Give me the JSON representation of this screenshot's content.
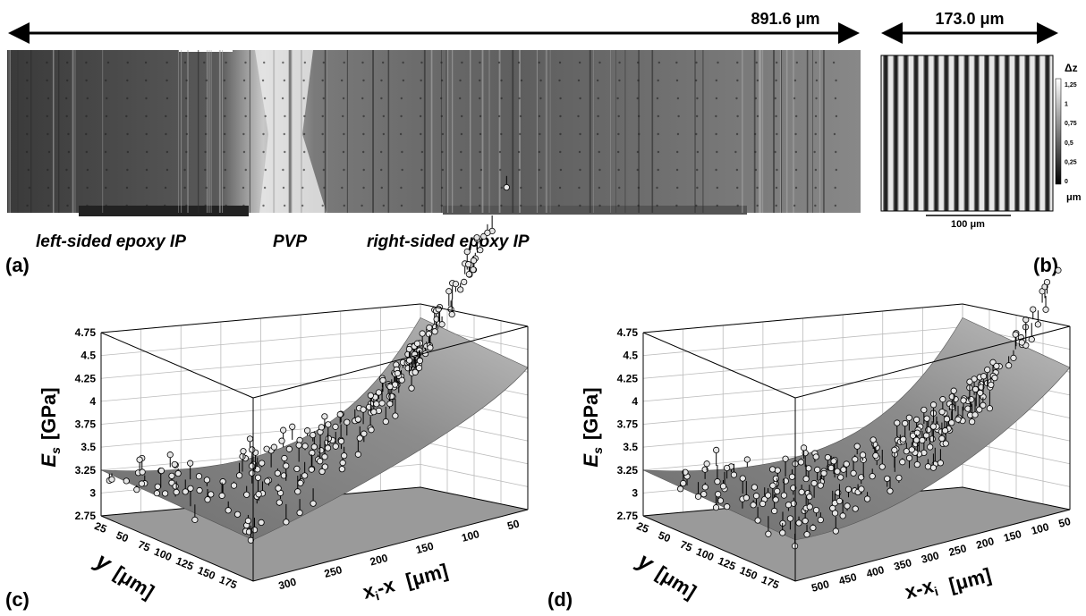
{
  "panel_a": {
    "scale_label": "891.6 μm",
    "labels": [
      "left-sided epoxy IP",
      "PVP",
      "right-sided epoxy IP"
    ],
    "tag": "(a)"
  },
  "panel_b": {
    "scale_label": "173.0 μm",
    "colorbar_title": "Δz",
    "colorbar_ticks": [
      "1,25",
      "1",
      "0,75",
      "0,5",
      "0,25",
      "0"
    ],
    "colorbar_unit": "μm",
    "scalebar_label": "100 μm",
    "tag": "(b)"
  },
  "panel_c": {
    "z_ticks": [
      "4.75",
      "4.5",
      "4.25",
      "4",
      "3.75",
      "3.5",
      "3.25",
      "3",
      "2.75"
    ],
    "z_label": {
      "symbol": "E",
      "subscript": "s",
      "unit": "[GPa]"
    },
    "y_ticks": [
      "25",
      "50",
      "75",
      "100",
      "125",
      "150",
      "175"
    ],
    "y_label": {
      "symbol": "y",
      "unit": "[μm]"
    },
    "x_ticks": [
      "300",
      "250",
      "200",
      "150",
      "100",
      "50"
    ],
    "x_label": {
      "head": "x",
      "subscript": "i",
      "tail": "-x",
      "unit": "[μm]"
    },
    "tag": "(c)"
  },
  "panel_d": {
    "z_ticks": [
      "4.75",
      "4.5",
      "4.25",
      "4",
      "3.75",
      "3.5",
      "3.25",
      "3",
      "2.75"
    ],
    "z_label": {
      "symbol": "E",
      "subscript": "s",
      "unit": "[GPa]"
    },
    "y_ticks": [
      "25",
      "50",
      "75",
      "100",
      "125",
      "150",
      "175"
    ],
    "y_label": {
      "symbol": "y",
      "unit": "[μm]"
    },
    "x_ticks": [
      "500",
      "450",
      "400",
      "350",
      "300",
      "250",
      "200",
      "150",
      "100",
      "50"
    ],
    "x_label": {
      "head": "x-x",
      "subscript": "i",
      "tail": "",
      "unit": "[μm]"
    },
    "tag": "(d)"
  }
}
